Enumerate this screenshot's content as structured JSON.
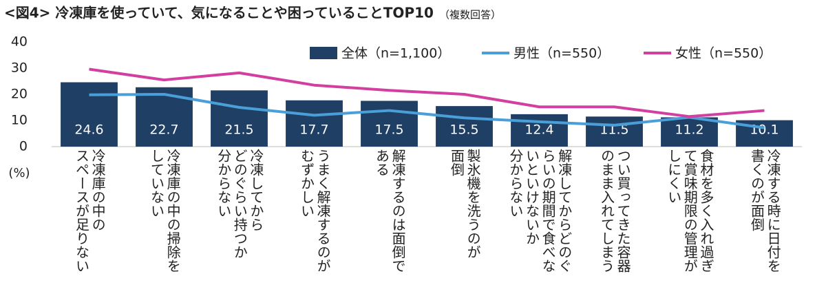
{
  "chart_data": {
    "type": "bar",
    "title": "<図4> 冷凍庫を使っていて、気になることや困っていることTOP10",
    "subtitle": "（複数回答）",
    "y_label": "(%)",
    "categories": [
      "冷凍庫の中の\nスペースが足りない",
      "冷凍庫の中の掃除を\nしていない",
      "冷凍してから\nどのぐらい持つか\n分からない",
      "うまく解凍するのが\nむずかしい",
      "解凍するのは面倒で\nある",
      "製氷機を洗うのが\n面倒",
      "解凍してからどのぐ\nらいの期間で食べな\nいといけないか\n分からない",
      "つい買ってきた容器\nのまま入れてしまう",
      "食材を多く入れ過ぎ\nて賞味期限の管理が\nしにくい",
      "冷凍する時に日付を\n書くのが面倒"
    ],
    "series": [
      {
        "name": "全体（n=1,100）",
        "type": "bar",
        "color": "#1f3f64",
        "values": [
          24.6,
          22.7,
          21.5,
          17.7,
          17.5,
          15.5,
          12.4,
          11.5,
          11.2,
          10.1
        ]
      },
      {
        "name": "男性（n=550）",
        "type": "line",
        "color": "#4a9fd8",
        "values": [
          19.8,
          20.0,
          15.0,
          12.0,
          13.8,
          11.0,
          9.5,
          8.2,
          11.2,
          7.2
        ]
      },
      {
        "name": "女性（n=550）",
        "type": "line",
        "color": "#d23fa0",
        "values": [
          29.6,
          25.5,
          28.2,
          23.5,
          21.5,
          20.0,
          15.2,
          15.2,
          11.5,
          13.8
        ]
      }
    ],
    "ylim": [
      0,
      40
    ],
    "yticks": [
      0,
      10,
      20,
      30,
      40
    ],
    "grid": false
  }
}
